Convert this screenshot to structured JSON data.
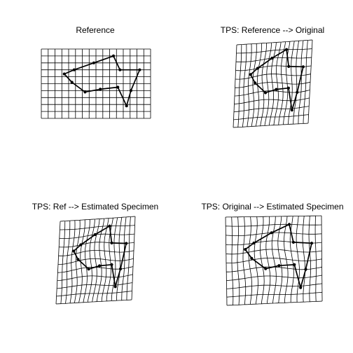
{
  "chart_data": [
    {
      "type": "tps-deformation-grid",
      "title": "Reference",
      "landmarks": [
        [
          0.21,
          0.36
        ],
        [
          0.28,
          0.48
        ],
        [
          0.4,
          0.62
        ],
        [
          0.54,
          0.58
        ],
        [
          0.7,
          0.55
        ],
        [
          0.78,
          0.82
        ],
        [
          0.82,
          0.6
        ],
        [
          0.9,
          0.3
        ],
        [
          0.72,
          0.3
        ],
        [
          0.66,
          0.1
        ],
        [
          0.48,
          0.2
        ],
        [
          0.3,
          0.3
        ]
      ],
      "deformation": "none"
    },
    {
      "type": "tps-deformation-grid",
      "title": "TPS: Reference --> Original",
      "landmarks": [
        [
          0.21,
          0.36
        ],
        [
          0.28,
          0.48
        ],
        [
          0.4,
          0.62
        ],
        [
          0.54,
          0.58
        ],
        [
          0.7,
          0.55
        ],
        [
          0.78,
          0.82
        ],
        [
          0.82,
          0.6
        ],
        [
          0.9,
          0.3
        ],
        [
          0.72,
          0.3
        ],
        [
          0.66,
          0.1
        ],
        [
          0.48,
          0.2
        ],
        [
          0.3,
          0.3
        ]
      ],
      "deformation": "original"
    },
    {
      "type": "tps-deformation-grid",
      "title": "TPS: Ref --> Estimated Specimen",
      "landmarks": [
        [
          0.21,
          0.36
        ],
        [
          0.28,
          0.48
        ],
        [
          0.4,
          0.62
        ],
        [
          0.54,
          0.58
        ],
        [
          0.7,
          0.55
        ],
        [
          0.78,
          0.82
        ],
        [
          0.82,
          0.6
        ],
        [
          0.9,
          0.3
        ],
        [
          0.72,
          0.3
        ],
        [
          0.66,
          0.1
        ],
        [
          0.48,
          0.2
        ],
        [
          0.3,
          0.3
        ]
      ],
      "deformation": "estimated"
    },
    {
      "type": "tps-deformation-grid",
      "title": "TPS: Original --> Estimated Specimen",
      "landmarks": [
        [
          0.21,
          0.36
        ],
        [
          0.28,
          0.48
        ],
        [
          0.4,
          0.62
        ],
        [
          0.54,
          0.58
        ],
        [
          0.7,
          0.55
        ],
        [
          0.78,
          0.82
        ],
        [
          0.82,
          0.6
        ],
        [
          0.9,
          0.3
        ],
        [
          0.72,
          0.3
        ],
        [
          0.66,
          0.1
        ],
        [
          0.48,
          0.2
        ],
        [
          0.3,
          0.3
        ]
      ],
      "deformation": "original-to-estimated"
    }
  ]
}
